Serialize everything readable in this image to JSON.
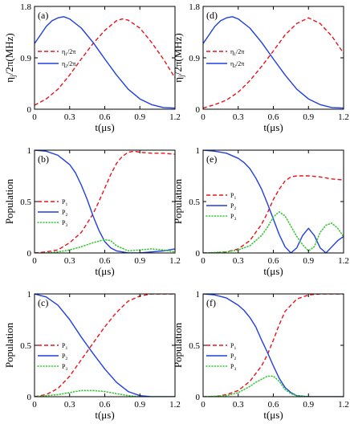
{
  "colors": {
    "red": "#e8131b",
    "blue": "#1f3fe0",
    "green": "#37c837",
    "frame": "#000000"
  },
  "chart_data": [
    {
      "id": "a",
      "type": "line",
      "label": "(a)",
      "ylabel": "η_j/2π(MHz)",
      "xlabel": "t(μs)",
      "xlim": [
        0,
        1.2
      ],
      "ylim": [
        0,
        1.8
      ],
      "xticks": [
        "0",
        "0.3",
        "0.6",
        "0.9",
        "1.2"
      ],
      "yticks": [
        "0",
        "0.9",
        "1.8"
      ],
      "legend_pos": "middle-left",
      "series": [
        {
          "name": "η1/2π",
          "color": "#e8131b",
          "style": "dashed",
          "x": [
            0,
            0.1,
            0.2,
            0.3,
            0.4,
            0.5,
            0.6,
            0.7,
            0.75,
            0.8,
            0.9,
            1.0,
            1.1,
            1.2
          ],
          "y": [
            0.07,
            0.18,
            0.35,
            0.6,
            0.88,
            1.15,
            1.38,
            1.55,
            1.58,
            1.56,
            1.42,
            1.17,
            0.88,
            0.55
          ]
        },
        {
          "name": "η2/2π",
          "color": "#1f3fe0",
          "style": "solid",
          "x": [
            0,
            0.05,
            0.1,
            0.15,
            0.2,
            0.25,
            0.3,
            0.4,
            0.5,
            0.6,
            0.7,
            0.8,
            0.9,
            1.0,
            1.1,
            1.2
          ],
          "y": [
            1.15,
            1.3,
            1.45,
            1.55,
            1.6,
            1.62,
            1.58,
            1.42,
            1.17,
            0.88,
            0.6,
            0.35,
            0.18,
            0.08,
            0.03,
            0.02
          ]
        }
      ]
    },
    {
      "id": "d",
      "type": "line",
      "label": "(d)",
      "ylabel": "η_j/2π(MHz)",
      "xlabel": "t(μs)",
      "xlim": [
        0,
        1.2
      ],
      "ylim": [
        0,
        1.8
      ],
      "xticks": [
        "0",
        "0.3",
        "0.6",
        "0.9",
        "1.2"
      ],
      "yticks": [
        "0",
        "0.9",
        "1.8"
      ],
      "legend_pos": "middle-left",
      "series": [
        {
          "name": "η1/2π",
          "color": "#e8131b",
          "style": "dashed",
          "x": [
            0,
            0.1,
            0.2,
            0.3,
            0.4,
            0.5,
            0.6,
            0.7,
            0.8,
            0.9,
            1.0,
            1.1,
            1.2
          ],
          "y": [
            0.02,
            0.08,
            0.16,
            0.3,
            0.5,
            0.75,
            1.02,
            1.3,
            1.5,
            1.6,
            1.5,
            1.28,
            0.98
          ]
        },
        {
          "name": "η2/2π",
          "color": "#1f3fe0",
          "style": "solid",
          "x": [
            0,
            0.05,
            0.1,
            0.15,
            0.2,
            0.25,
            0.3,
            0.4,
            0.5,
            0.6,
            0.7,
            0.8,
            0.9,
            1.0,
            1.1,
            1.2
          ],
          "y": [
            1.15,
            1.3,
            1.45,
            1.55,
            1.6,
            1.62,
            1.58,
            1.42,
            1.17,
            0.88,
            0.6,
            0.35,
            0.18,
            0.08,
            0.03,
            0.02
          ]
        }
      ]
    },
    {
      "id": "b",
      "type": "line",
      "label": "(b)",
      "ylabel": "Population",
      "xlabel": "t(μs)",
      "xlim": [
        0,
        1.2
      ],
      "ylim": [
        0,
        1
      ],
      "xticks": [
        "0",
        "0.3",
        "0.6",
        "0.9",
        "1.2"
      ],
      "yticks": [
        "0",
        "0.5",
        "1"
      ],
      "legend_pos": "middle-left",
      "series": [
        {
          "name": "P1",
          "color": "#e8131b",
          "style": "dashed",
          "x": [
            0,
            0.1,
            0.2,
            0.3,
            0.4,
            0.5,
            0.55,
            0.6,
            0.65,
            0.7,
            0.75,
            0.8,
            0.85,
            0.9,
            1.0,
            1.1,
            1.2
          ],
          "y": [
            0,
            0.01,
            0.03,
            0.1,
            0.2,
            0.38,
            0.5,
            0.63,
            0.76,
            0.87,
            0.94,
            0.98,
            0.99,
            0.98,
            0.97,
            0.97,
            0.96
          ]
        },
        {
          "name": "P2",
          "color": "#1f3fe0",
          "style": "solid",
          "x": [
            0,
            0.1,
            0.2,
            0.3,
            0.35,
            0.4,
            0.45,
            0.5,
            0.55,
            0.6,
            0.65,
            0.7,
            0.75,
            0.8,
            0.85,
            0.9,
            1.0,
            1.1,
            1.2
          ],
          "y": [
            1,
            0.99,
            0.95,
            0.86,
            0.78,
            0.66,
            0.52,
            0.36,
            0.22,
            0.11,
            0.05,
            0.02,
            0.01,
            0,
            0,
            0,
            0.01,
            0.02,
            0.04
          ]
        },
        {
          "name": "P3",
          "color": "#37c837",
          "style": "dotted",
          "x": [
            0,
            0.1,
            0.2,
            0.3,
            0.4,
            0.5,
            0.6,
            0.65,
            0.7,
            0.8,
            0.9,
            1.0,
            1.1,
            1.2
          ],
          "y": [
            0,
            0,
            0.01,
            0.03,
            0.06,
            0.1,
            0.13,
            0.12,
            0.07,
            0.02,
            0.03,
            0.04,
            0.03,
            0.01
          ]
        }
      ]
    },
    {
      "id": "e",
      "type": "line",
      "label": "(e)",
      "ylabel": "Population",
      "xlabel": "t(μs)",
      "xlim": [
        0,
        1.2
      ],
      "ylim": [
        0,
        1
      ],
      "xticks": [
        "0",
        "0.3",
        "0.6",
        "0.9",
        "1.2"
      ],
      "yticks": [
        "0",
        "0.5",
        "1"
      ],
      "legend_pos": "top-left",
      "series": [
        {
          "name": "P1",
          "color": "#e8131b",
          "style": "dashed",
          "x": [
            0,
            0.1,
            0.2,
            0.3,
            0.4,
            0.5,
            0.55,
            0.6,
            0.65,
            0.7,
            0.75,
            0.8,
            0.9,
            1.0,
            1.1,
            1.2
          ],
          "y": [
            0,
            0,
            0.01,
            0.04,
            0.12,
            0.28,
            0.39,
            0.52,
            0.62,
            0.7,
            0.74,
            0.75,
            0.75,
            0.74,
            0.72,
            0.71
          ]
        },
        {
          "name": "P2",
          "color": "#1f3fe0",
          "style": "solid",
          "x": [
            0,
            0.1,
            0.2,
            0.3,
            0.35,
            0.4,
            0.45,
            0.5,
            0.55,
            0.6,
            0.65,
            0.7,
            0.75,
            0.8,
            0.85,
            0.9,
            0.95,
            1.0,
            1.05,
            1.1,
            1.15,
            1.2
          ],
          "y": [
            1,
            0.99,
            0.97,
            0.92,
            0.88,
            0.82,
            0.73,
            0.62,
            0.48,
            0.33,
            0.18,
            0.06,
            0,
            0.05,
            0.17,
            0.24,
            0.17,
            0.05,
            0,
            0.06,
            0.12,
            0.16
          ]
        },
        {
          "name": "P3",
          "color": "#37c837",
          "style": "dotted",
          "x": [
            0,
            0.2,
            0.3,
            0.4,
            0.5,
            0.55,
            0.6,
            0.65,
            0.7,
            0.75,
            0.8,
            0.85,
            0.9,
            0.95,
            1.0,
            1.05,
            1.1,
            1.15,
            1.2
          ],
          "y": [
            0,
            0.01,
            0.03,
            0.07,
            0.17,
            0.25,
            0.35,
            0.4,
            0.36,
            0.26,
            0.16,
            0.08,
            0.02,
            0.06,
            0.2,
            0.27,
            0.29,
            0.24,
            0.16
          ]
        }
      ]
    },
    {
      "id": "c",
      "type": "line",
      "label": "(c)",
      "ylabel": "Population",
      "xlabel": "t(μs)",
      "xlim": [
        0,
        1.2
      ],
      "ylim": [
        0,
        1
      ],
      "xticks": [
        "0",
        "0.3",
        "0.6",
        "0.9",
        "1.2"
      ],
      "yticks": [
        "0",
        "0.5",
        "1"
      ],
      "legend_pos": "middle-left",
      "series": [
        {
          "name": "P1",
          "color": "#e8131b",
          "style": "dashed",
          "x": [
            0,
            0.1,
            0.2,
            0.3,
            0.4,
            0.45,
            0.5,
            0.6,
            0.7,
            0.8,
            0.9,
            1.0,
            1.1,
            1.2
          ],
          "y": [
            0,
            0.02,
            0.08,
            0.2,
            0.36,
            0.44,
            0.52,
            0.68,
            0.82,
            0.93,
            0.98,
            1,
            1,
            1
          ]
        },
        {
          "name": "P2",
          "color": "#1f3fe0",
          "style": "solid",
          "x": [
            0,
            0.1,
            0.2,
            0.3,
            0.4,
            0.45,
            0.5,
            0.6,
            0.7,
            0.8,
            0.9,
            1.0,
            1.1,
            1.2
          ],
          "y": [
            1,
            0.97,
            0.89,
            0.75,
            0.58,
            0.5,
            0.42,
            0.27,
            0.14,
            0.05,
            0.01,
            0,
            0,
            0
          ]
        },
        {
          "name": "P3",
          "color": "#37c837",
          "style": "dotted",
          "x": [
            0,
            0.1,
            0.2,
            0.3,
            0.4,
            0.5,
            0.6,
            0.7,
            0.8,
            0.9,
            1.0,
            1.2
          ],
          "y": [
            0,
            0.01,
            0.02,
            0.04,
            0.06,
            0.06,
            0.05,
            0.03,
            0.01,
            0,
            0,
            0
          ]
        }
      ]
    },
    {
      "id": "f",
      "type": "line",
      "label": "(f)",
      "ylabel": "Population",
      "xlabel": "t(μs)",
      "xlim": [
        0,
        1.2
      ],
      "ylim": [
        0,
        1
      ],
      "xticks": [
        "0",
        "0.3",
        "0.6",
        "0.9",
        "1.2"
      ],
      "yticks": [
        "0",
        "0.5",
        "1"
      ],
      "legend_pos": "middle-left",
      "series": [
        {
          "name": "P1",
          "color": "#e8131b",
          "style": "dashed",
          "x": [
            0,
            0.1,
            0.2,
            0.3,
            0.4,
            0.5,
            0.55,
            0.6,
            0.65,
            0.7,
            0.8,
            0.9,
            1.0,
            1.1,
            1.2
          ],
          "y": [
            0,
            0,
            0.02,
            0.06,
            0.15,
            0.3,
            0.41,
            0.55,
            0.7,
            0.83,
            0.95,
            0.99,
            1,
            1,
            1
          ]
        },
        {
          "name": "P2",
          "color": "#1f3fe0",
          "style": "solid",
          "x": [
            0,
            0.1,
            0.2,
            0.3,
            0.35,
            0.4,
            0.45,
            0.5,
            0.55,
            0.6,
            0.65,
            0.7,
            0.75,
            0.8,
            0.9,
            1.0,
            1.1,
            1.2
          ],
          "y": [
            1,
            0.99,
            0.96,
            0.89,
            0.84,
            0.77,
            0.68,
            0.55,
            0.43,
            0.3,
            0.18,
            0.09,
            0.04,
            0.01,
            0,
            0,
            0,
            0
          ]
        },
        {
          "name": "P3",
          "color": "#37c837",
          "style": "dotted",
          "x": [
            0,
            0.2,
            0.3,
            0.4,
            0.45,
            0.5,
            0.55,
            0.6,
            0.65,
            0.7,
            0.75,
            0.8,
            0.9,
            1.0,
            1.2
          ],
          "y": [
            0,
            0.01,
            0.04,
            0.1,
            0.14,
            0.17,
            0.2,
            0.2,
            0.15,
            0.07,
            0.03,
            0.01,
            0,
            0,
            0
          ]
        }
      ]
    }
  ]
}
